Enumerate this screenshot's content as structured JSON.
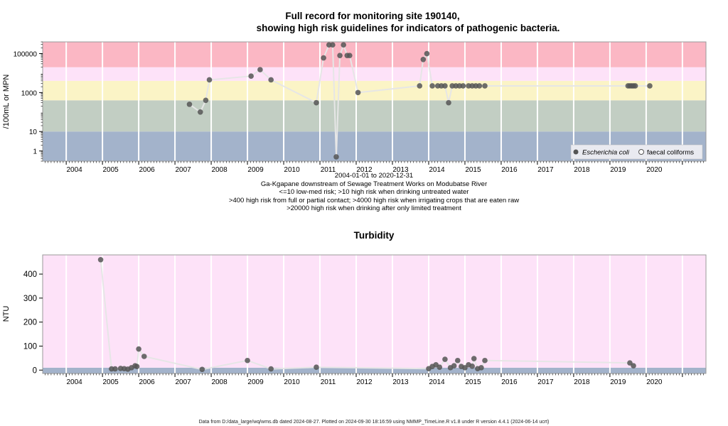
{
  "chart_data": [
    {
      "type": "scatter",
      "title_line1": "Full record for monitoring site 190140,",
      "title_line2": "showing high risk guidelines for indicators of pathogenic bacteria.",
      "ylabel": "/100mL or MPN",
      "y_scale": "log",
      "ylim": [
        0.3,
        400000
      ],
      "yticks": [
        1,
        10,
        1000,
        100000
      ],
      "ytick_labels": [
        "1",
        "10",
        "1000",
        "100000"
      ],
      "xlim": [
        2003.35,
        2021.65
      ],
      "x_tick_labels": [
        "2004",
        "2005",
        "2006",
        "2007",
        "2008",
        "2009",
        "2010",
        "2011",
        "2012",
        "2013",
        "2014",
        "2015",
        "2016",
        "2017",
        "2018",
        "2019",
        "2020"
      ],
      "subtitle_lines": [
        "2004-01-01 to 2020-12-31",
        "Ga-Kgapane downstream of Sewage Treatment Works on Modubatse River",
        "<=10 low-med risk; >10 high risk when drinking untreated water",
        ">400 high risk from full or partial contact; >4000 high risk when irrigating crops that are eaten raw",
        ">20000 high risk when drinking after only limited treatment"
      ],
      "bands": [
        {
          "from": 0.3,
          "to": 10,
          "color": "#a3b3cb"
        },
        {
          "from": 10,
          "to": 400,
          "color": "#c2cec3"
        },
        {
          "from": 400,
          "to": 4000,
          "color": "#fbf4c6"
        },
        {
          "from": 4000,
          "to": 20000,
          "color": "#fde2f8"
        },
        {
          "from": 20000,
          "to": 400000,
          "color": "#fbb7c4"
        }
      ],
      "legend": {
        "position": "bottom-right",
        "entries": [
          "Escherichia coli",
          "faecal coliforms"
        ]
      },
      "series": [
        {
          "name": "Escherichia coli",
          "marker": "filled-circle",
          "color": "#555555",
          "points": [
            [
              2007.4,
              250
            ],
            [
              2007.7,
              100
            ],
            [
              2007.85,
              400
            ],
            [
              2007.95,
              4500
            ],
            [
              2009.1,
              7000
            ],
            [
              2009.35,
              15000
            ],
            [
              2009.65,
              4500
            ],
            [
              2010.9,
              300
            ],
            [
              2011.1,
              60000
            ],
            [
              2011.25,
              280000
            ],
            [
              2011.35,
              280000
            ],
            [
              2011.45,
              0.5
            ],
            [
              2011.55,
              80000
            ],
            [
              2011.65,
              280000
            ],
            [
              2011.75,
              80000
            ],
            [
              2011.82,
              80000
            ],
            [
              2012.05,
              1000
            ],
            [
              2013.75,
              2200
            ],
            [
              2013.85,
              50000
            ],
            [
              2013.95,
              100000
            ],
            [
              2014.1,
              2200
            ],
            [
              2014.25,
              2200
            ],
            [
              2014.35,
              2200
            ],
            [
              2014.45,
              2200
            ],
            [
              2014.55,
              300
            ],
            [
              2014.65,
              2200
            ],
            [
              2014.75,
              2200
            ],
            [
              2014.85,
              2200
            ],
            [
              2014.95,
              2200
            ],
            [
              2015.1,
              2200
            ],
            [
              2015.2,
              2200
            ],
            [
              2015.3,
              2200
            ],
            [
              2015.4,
              2200
            ],
            [
              2015.55,
              2200
            ],
            [
              2019.5,
              2200
            ],
            [
              2019.55,
              2200
            ],
            [
              2019.6,
              2200
            ],
            [
              2019.65,
              2200
            ],
            [
              2019.7,
              2200
            ],
            [
              2020.1,
              2200
            ]
          ]
        },
        {
          "name": "faecal coliforms",
          "marker": "open-circle",
          "color": "#555555",
          "points": []
        }
      ]
    },
    {
      "type": "scatter",
      "title": "Turbidity",
      "ylabel": "NTU",
      "ylim": [
        -14,
        480
      ],
      "yticks": [
        0,
        100,
        200,
        300,
        400
      ],
      "ytick_labels": [
        "0",
        "100",
        "200",
        "300",
        "400"
      ],
      "xlim": [
        2003.35,
        2021.65
      ],
      "x_tick_labels": [
        "2004",
        "2005",
        "2006",
        "2007",
        "2008",
        "2009",
        "2010",
        "2011",
        "2012",
        "2013",
        "2014",
        "2015",
        "2016",
        "2017",
        "2018",
        "2019",
        "2020"
      ],
      "bands": [
        {
          "from": -14,
          "to": 10,
          "color": "#a3b3cb"
        },
        {
          "from": 10,
          "to": 480,
          "color": "#fde2f8"
        }
      ],
      "series": [
        {
          "name": "",
          "marker": "filled-circle",
          "color": "#555555",
          "points": [
            [
              2004.95,
              460
            ],
            [
              2005.25,
              5
            ],
            [
              2005.35,
              5
            ],
            [
              2005.5,
              7
            ],
            [
              2005.6,
              6
            ],
            [
              2005.7,
              4
            ],
            [
              2005.8,
              10
            ],
            [
              2005.9,
              18
            ],
            [
              2005.95,
              15
            ],
            [
              2006.0,
              88
            ],
            [
              2006.15,
              57
            ],
            [
              2007.75,
              3
            ],
            [
              2009.0,
              40
            ],
            [
              2009.65,
              5
            ],
            [
              2010.9,
              12
            ],
            [
              2014.0,
              6
            ],
            [
              2014.1,
              15
            ],
            [
              2014.2,
              22
            ],
            [
              2014.3,
              12
            ],
            [
              2014.45,
              45
            ],
            [
              2014.6,
              10
            ],
            [
              2014.7,
              18
            ],
            [
              2014.8,
              40
            ],
            [
              2014.9,
              15
            ],
            [
              2015.0,
              10
            ],
            [
              2015.1,
              22
            ],
            [
              2015.2,
              16
            ],
            [
              2015.25,
              48
            ],
            [
              2015.35,
              6
            ],
            [
              2015.45,
              10
            ],
            [
              2015.55,
              40
            ],
            [
              2019.55,
              30
            ],
            [
              2019.65,
              18
            ]
          ]
        }
      ]
    }
  ],
  "footer": "Data from D:/data_large/wq/wms.db dated 2024-08-27. Plotted on 2024-09-30 18:16:59 using NMMP_TimeLine.R v1.8 under R version 4.4.1 (2024-06-14 ucrt)"
}
